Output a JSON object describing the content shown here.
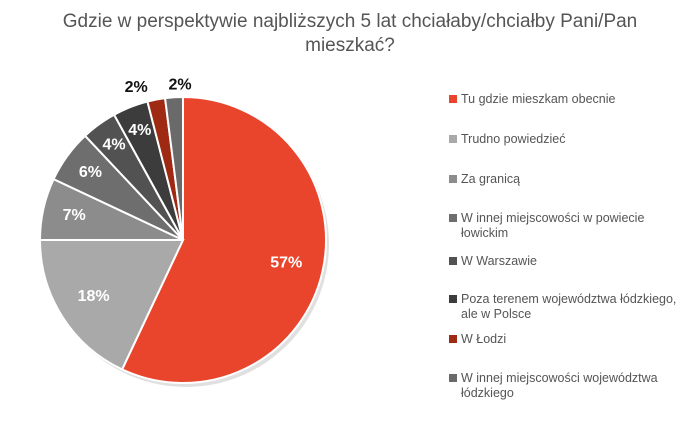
{
  "chart_data": {
    "type": "pie",
    "title_line1": "Gdzie w perspektywie najbliższych 5 lat chciałaby/chciałby Pani/Pan",
    "title_line2": "mieszkać?",
    "start_angle_deg": 0,
    "direction": "clockwise",
    "legend_position": "right",
    "slices": [
      {
        "label": "Tu gdzie mieszkam obecnie",
        "value": 57,
        "display": "57%",
        "color": "#E8452C"
      },
      {
        "label": "Trudno powiedzieć",
        "value": 18,
        "display": "18%",
        "color": "#A9A9A9"
      },
      {
        "label": "Za granicą",
        "value": 7,
        "display": "7%",
        "color": "#8C8C8C"
      },
      {
        "label": "W innej miejscowości w powiecie łowickim",
        "value": 6,
        "display": "6%",
        "color": "#6E6E6E"
      },
      {
        "label": "W Warszawie",
        "value": 4,
        "display": "4%",
        "color": "#525252"
      },
      {
        "label": "Poza terenem województwa łódzkiego, ale w Polsce",
        "value": 4,
        "display": "4%",
        "color": "#3C3C3C"
      },
      {
        "label": "W Łodzi",
        "value": 2,
        "display": "2%",
        "color": "#9E2A14"
      },
      {
        "label": "W innej miejscowości województwa łódzkiego",
        "value": 2,
        "display": "2%",
        "color": "#6A6A6A"
      }
    ]
  }
}
